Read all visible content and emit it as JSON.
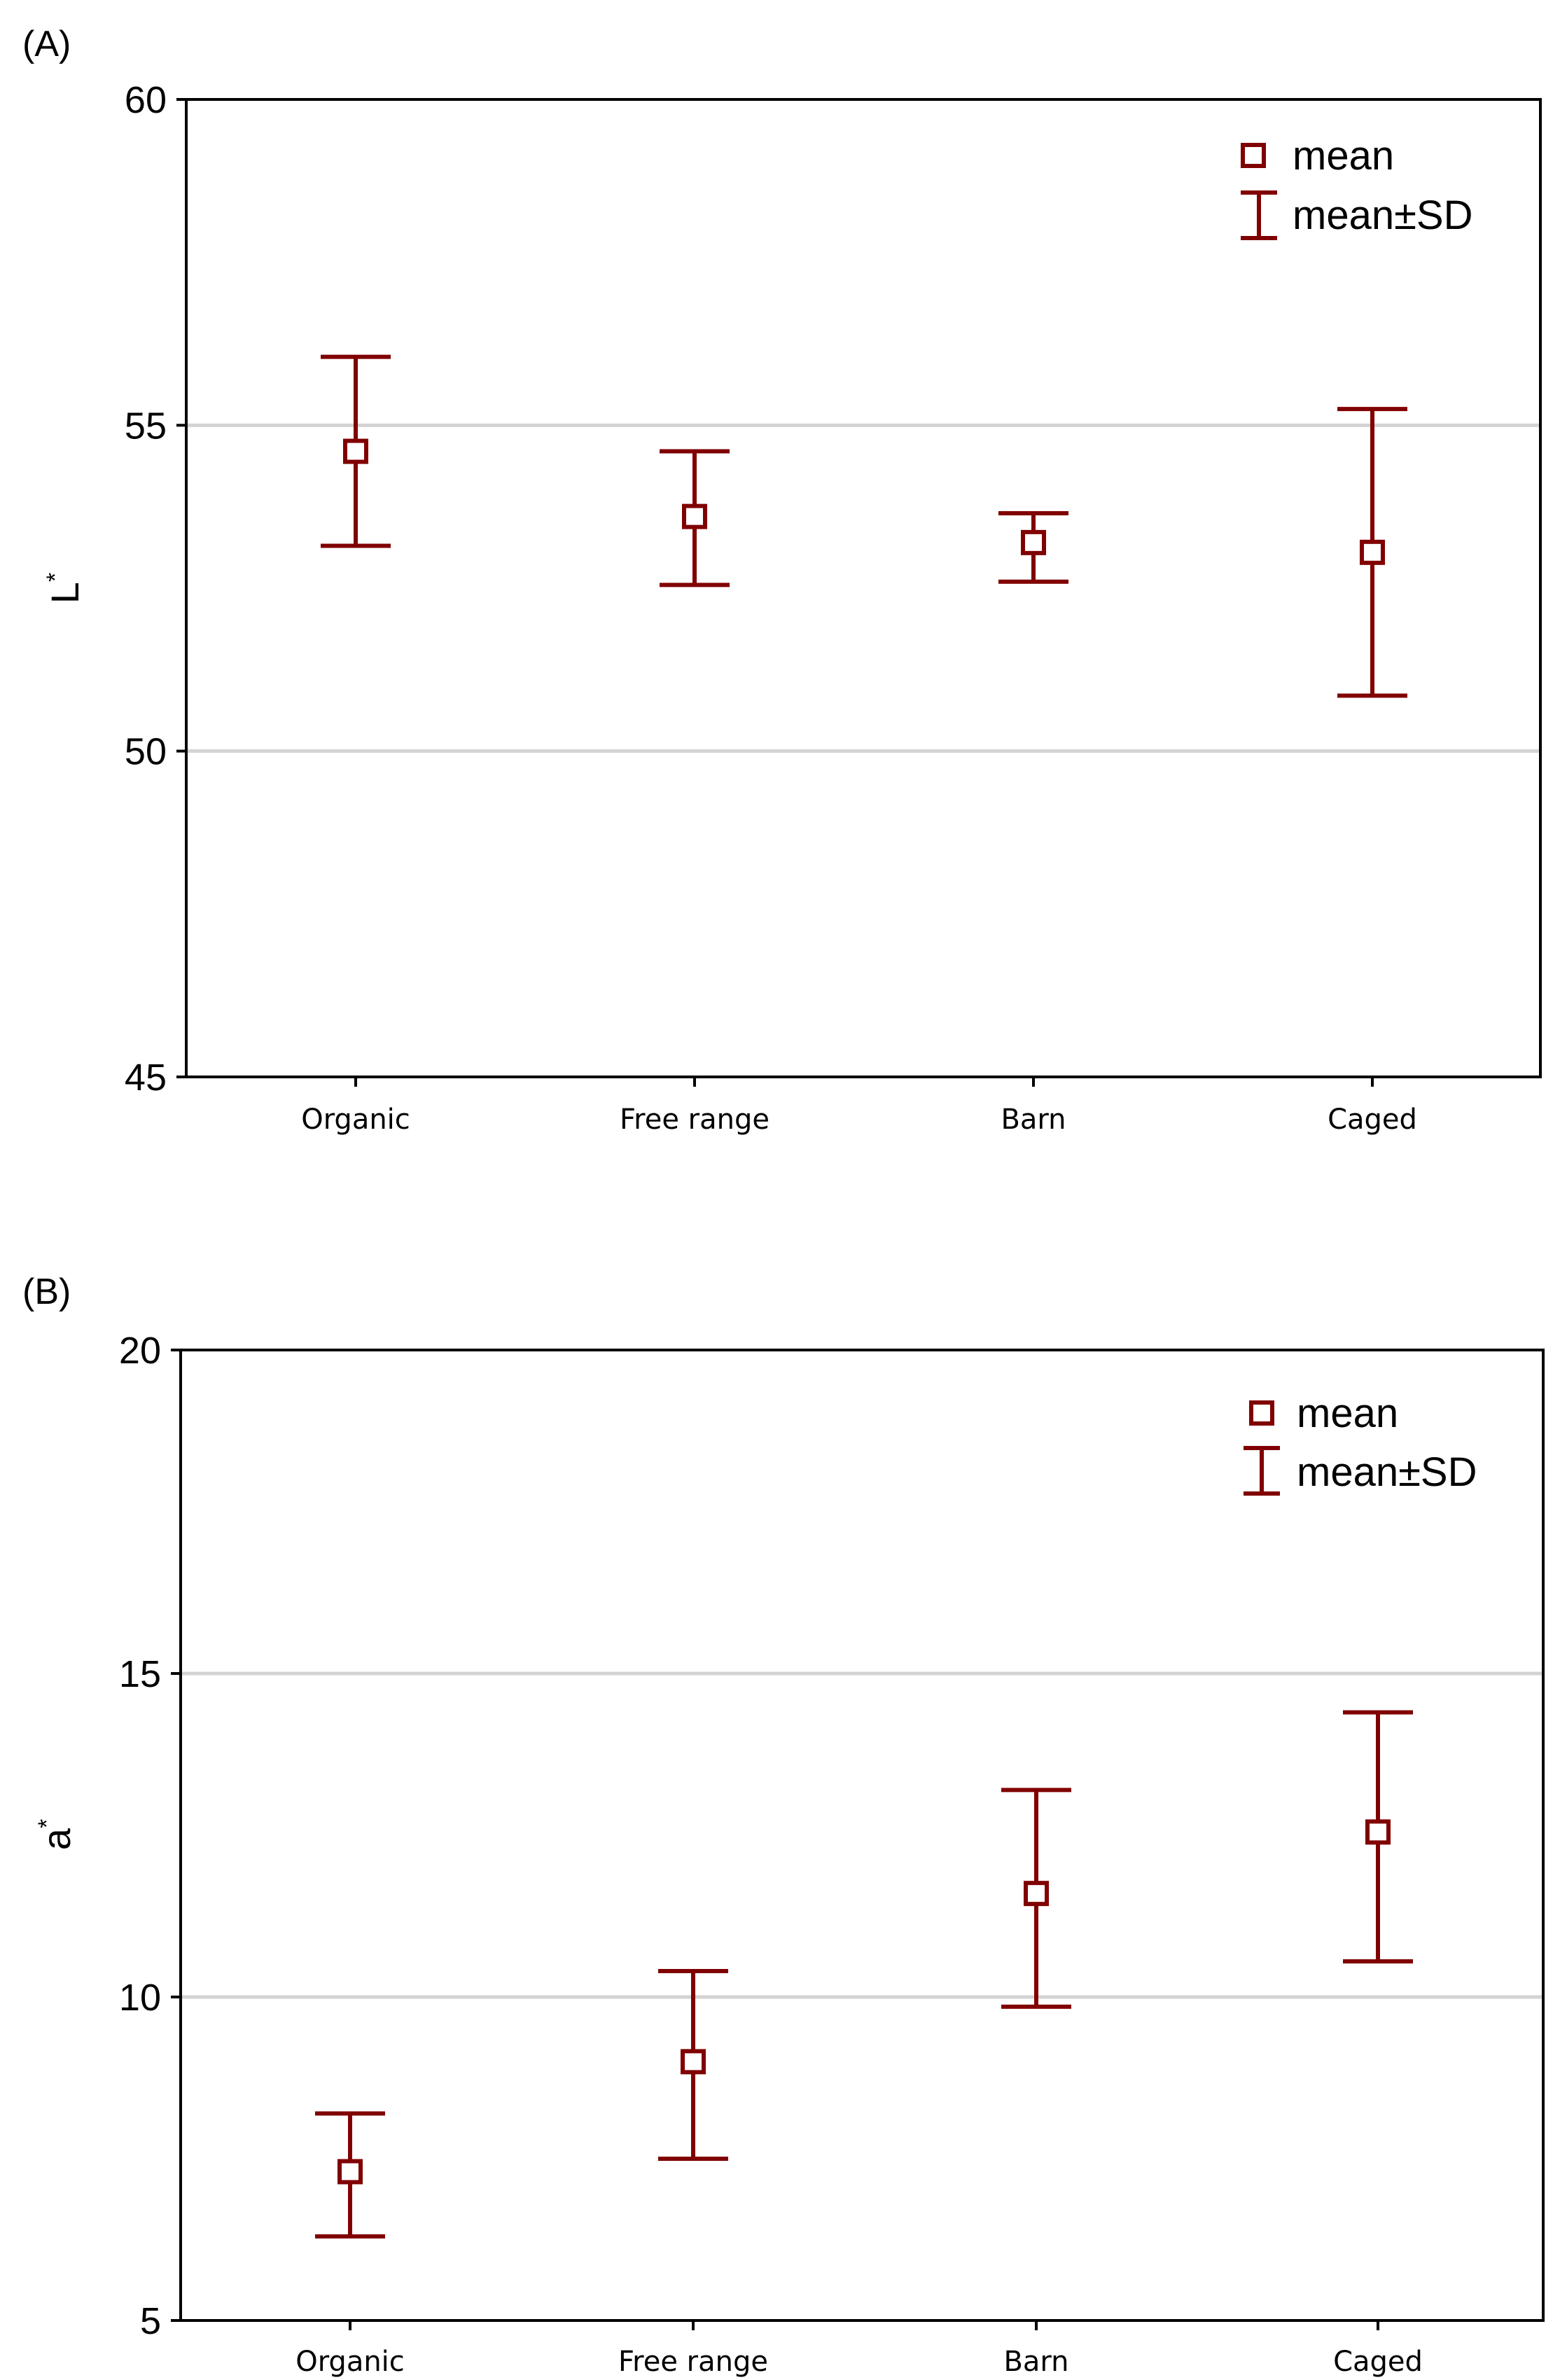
{
  "colors": {
    "series": "#800000",
    "grid": "#d3d3d3",
    "axis": "#000000"
  },
  "chart_data": [
    {
      "type": "scatter",
      "panel_label": "(A)",
      "title": "",
      "xlabel": "",
      "ylabel_main": "L",
      "ylabel_sup": "*",
      "ylim": [
        45,
        60
      ],
      "yticks": [
        45,
        50,
        55,
        60
      ],
      "gridlines": [
        50,
        55
      ],
      "categories": [
        "Organic",
        "Free range",
        "Barn",
        "Caged"
      ],
      "series": [
        {
          "name": "mean",
          "values": [
            54.6,
            53.6,
            53.2,
            53.05
          ]
        },
        {
          "name": "mean±SD",
          "lower": [
            53.15,
            52.55,
            52.6,
            50.85
          ],
          "upper": [
            56.05,
            54.6,
            53.65,
            55.25
          ]
        }
      ],
      "legend": {
        "position": "top-right",
        "mean_label": "mean",
        "sd_label": "mean±SD"
      }
    },
    {
      "type": "scatter",
      "panel_label": "(B)",
      "title": "",
      "xlabel": "",
      "ylabel_main": "a",
      "ylabel_sup": "*",
      "ylim": [
        5,
        20
      ],
      "yticks": [
        5,
        10,
        15,
        20
      ],
      "gridlines": [
        10,
        15
      ],
      "categories": [
        "Organic",
        "Free range",
        "Barn",
        "Caged"
      ],
      "series": [
        {
          "name": "mean",
          "values": [
            7.3,
            9.0,
            11.6,
            12.55
          ]
        },
        {
          "name": "mean±SD",
          "lower": [
            6.3,
            7.5,
            9.85,
            10.55
          ],
          "upper": [
            8.2,
            10.4,
            13.2,
            14.4
          ]
        }
      ],
      "legend": {
        "position": "top-right",
        "mean_label": "mean",
        "sd_label": "mean±SD"
      }
    }
  ]
}
